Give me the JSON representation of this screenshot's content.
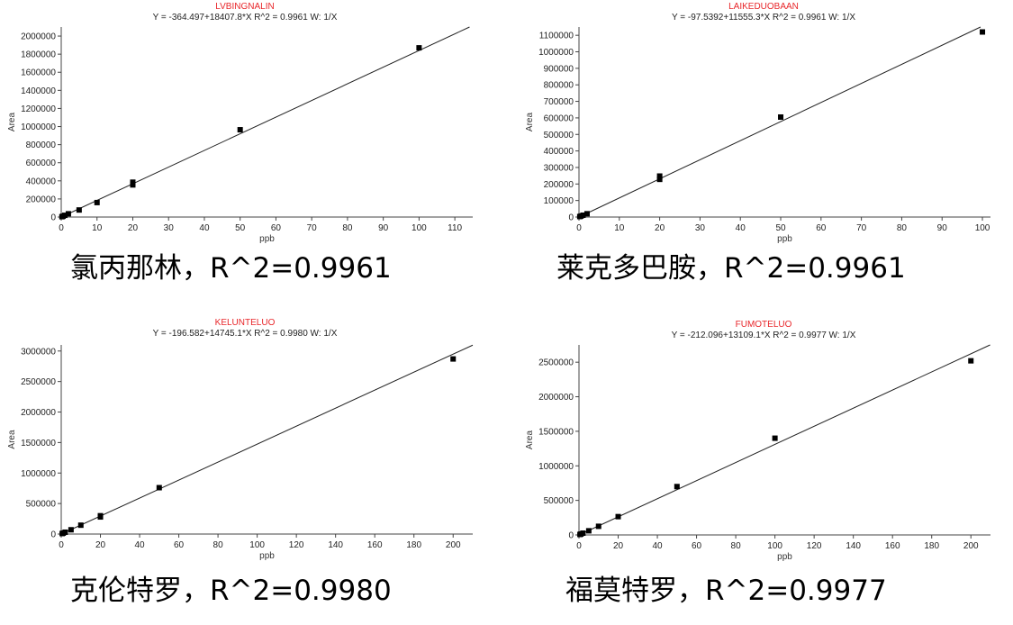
{
  "chart_data": [
    {
      "type": "scatter",
      "title": "LVBINGNALIN",
      "equation": "Y = -364.497+18407.8*X   R^2 = 0.9961   W: 1/X",
      "xlabel": "ppb",
      "ylabel": "Area",
      "xlim": [
        0,
        115
      ],
      "ylim": [
        0,
        2100000
      ],
      "xticks": [
        0,
        10,
        20,
        30,
        40,
        50,
        60,
        70,
        80,
        90,
        100,
        110
      ],
      "yticks": [
        0,
        200000,
        400000,
        600000,
        800000,
        1000000,
        1200000,
        1400000,
        1600000,
        1800000,
        2000000
      ],
      "fit": {
        "intercept": -364.497,
        "slope": 18407.8
      },
      "x": [
        0.2,
        0.5,
        1,
        2,
        5,
        10,
        20,
        20,
        50,
        100
      ],
      "y": [
        4000,
        9000,
        19000,
        36000,
        78000,
        160000,
        355000,
        385000,
        965000,
        1870000
      ],
      "caption": "氯丙那林，R^2=0.9961"
    },
    {
      "type": "scatter",
      "title": "LAIKEDUOBAAN",
      "equation": "Y = -97.5392+11555.3*X   R^2 = 0.9961   W: 1/X",
      "xlabel": "ppb",
      "ylabel": "Area",
      "xlim": [
        0,
        102
      ],
      "ylim": [
        0,
        1150000
      ],
      "xticks": [
        0,
        10,
        20,
        30,
        40,
        50,
        60,
        70,
        80,
        90,
        100
      ],
      "yticks": [
        0,
        100000,
        200000,
        300000,
        400000,
        500000,
        600000,
        700000,
        800000,
        900000,
        1000000,
        1100000
      ],
      "fit": {
        "intercept": -97.5392,
        "slope": 11555.3
      },
      "x": [
        0.2,
        0.5,
        1,
        2,
        20,
        20,
        50,
        100
      ],
      "y": [
        3000,
        6000,
        11000,
        20000,
        228000,
        248000,
        605000,
        1120000
      ],
      "caption": "莱克多巴胺，R^2=0.9961"
    },
    {
      "type": "scatter",
      "title": "KELUNTELUO",
      "equation": "Y = -196.582+14745.1*X   R^2 = 0.9980   W: 1/X",
      "xlabel": "ppb",
      "ylabel": "Area",
      "xlim": [
        0,
        210
      ],
      "ylim": [
        0,
        3100000
      ],
      "xticks": [
        0,
        20,
        40,
        60,
        80,
        100,
        120,
        140,
        160,
        180,
        200
      ],
      "yticks": [
        0,
        500000,
        1000000,
        1500000,
        2000000,
        2500000,
        3000000
      ],
      "fit": {
        "intercept": -196.582,
        "slope": 14745.1
      },
      "x": [
        0.5,
        1,
        2,
        5,
        10,
        20,
        20,
        50,
        200
      ],
      "y": [
        8000,
        15000,
        30000,
        70000,
        145000,
        280000,
        300000,
        760000,
        2870000
      ],
      "caption": "克伦特罗，R^2=0.9980"
    },
    {
      "type": "scatter",
      "title": "FUMOTELUO",
      "equation": "Y = -212.096+13109.1*X   R^2 = 0.9977   W: 1/X",
      "xlabel": "ppb",
      "ylabel": "Area",
      "xlim": [
        0,
        210
      ],
      "ylim": [
        0,
        2750000
      ],
      "xticks": [
        0,
        20,
        40,
        60,
        80,
        100,
        120,
        140,
        160,
        180,
        200
      ],
      "yticks": [
        0,
        500000,
        1000000,
        1500000,
        2000000,
        2500000
      ],
      "fit": {
        "intercept": -212.096,
        "slope": 13109.1
      },
      "x": [
        0.5,
        1,
        2,
        5,
        10,
        20,
        50,
        100,
        200
      ],
      "y": [
        7000,
        13000,
        26000,
        60000,
        125000,
        265000,
        700000,
        1400000,
        2520000
      ],
      "caption": "福莫特罗，R^2=0.9977"
    }
  ]
}
